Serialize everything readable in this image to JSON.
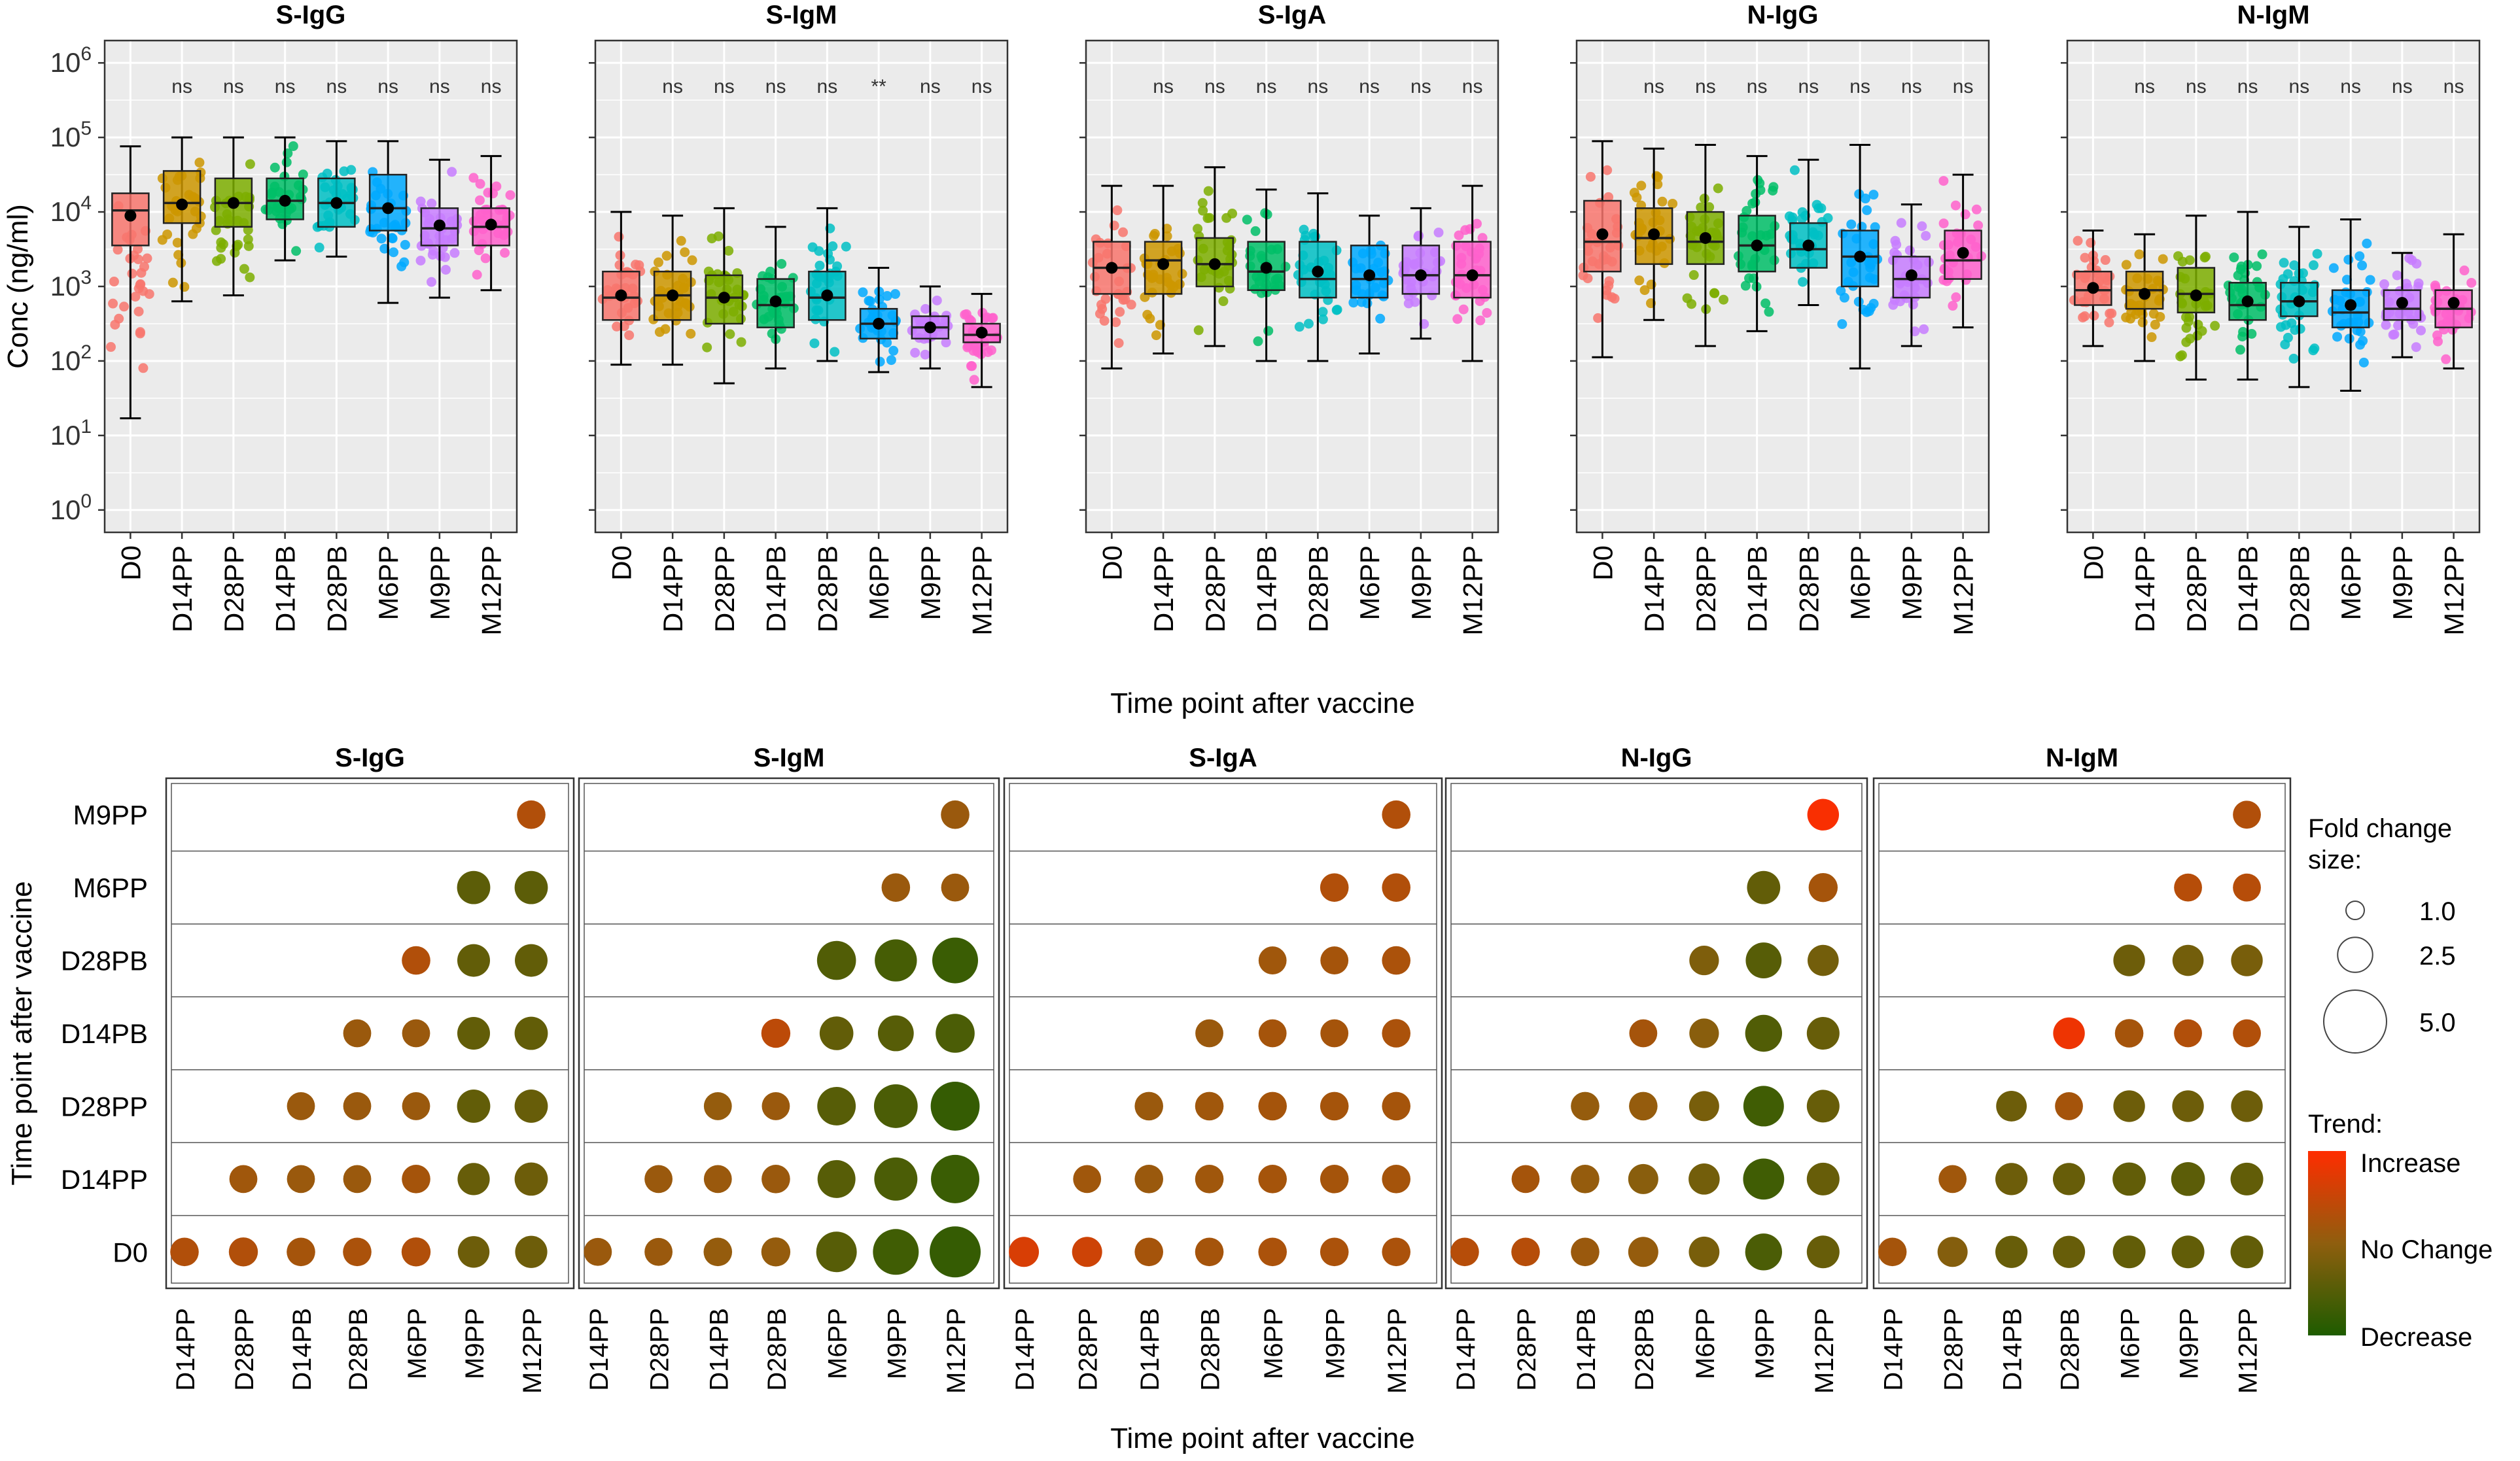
{
  "chart_data": [
    {
      "type": "boxplot",
      "panels": [
        "S-IgG",
        "S-IgM",
        "S-IgA",
        "N-IgG",
        "N-IgM"
      ],
      "categories": [
        "D0",
        "D14PP",
        "D28PP",
        "D14PB",
        "D28PB",
        "M6PP",
        "M9PP",
        "M12PP"
      ],
      "colors": [
        "#F8766D",
        "#CD9600",
        "#7CAE00",
        "#00BE67",
        "#00BFC4",
        "#00A9FF",
        "#C77CFF",
        "#FF61CC"
      ],
      "ylabel": "Conc (ng/ml)",
      "xlabel": "Time point after vaccine",
      "yscale": "log10",
      "ylim_log10": [
        -0.3,
        6.3
      ],
      "ytick_exponents": [
        "0",
        "1",
        "2",
        "3",
        "4",
        "5",
        "6"
      ],
      "ytick_base": "10",
      "ytick_values_log10": [
        0,
        1,
        2,
        3,
        4,
        5,
        6
      ],
      "box_log10": {
        "S-IgG": [
          [
            3.55,
            4.02,
            4.25,
            1.23,
            4.88,
            3.95
          ],
          [
            3.85,
            4.12,
            4.55,
            2.8,
            5.0,
            4.1
          ],
          [
            3.8,
            4.12,
            4.45,
            2.88,
            5.0,
            4.12
          ],
          [
            3.9,
            4.15,
            4.45,
            3.35,
            5.0,
            4.15
          ],
          [
            3.8,
            4.12,
            4.45,
            3.4,
            4.95,
            4.12
          ],
          [
            3.75,
            4.05,
            4.5,
            2.78,
            4.95,
            4.05
          ],
          [
            3.55,
            3.78,
            4.05,
            2.85,
            4.7,
            3.82
          ],
          [
            3.55,
            3.8,
            4.05,
            2.95,
            4.75,
            3.83
          ]
        ],
        "S-IgM": [
          [
            2.55,
            2.85,
            3.2,
            1.95,
            4.0,
            2.88
          ],
          [
            2.55,
            2.88,
            3.2,
            1.95,
            3.95,
            2.88
          ],
          [
            2.5,
            2.85,
            3.15,
            1.7,
            4.05,
            2.85
          ],
          [
            2.45,
            2.75,
            3.1,
            1.9,
            3.8,
            2.8
          ],
          [
            2.55,
            2.85,
            3.2,
            2.0,
            4.05,
            2.88
          ],
          [
            2.3,
            2.5,
            2.7,
            1.85,
            3.25,
            2.5
          ],
          [
            2.3,
            2.45,
            2.6,
            1.9,
            3.0,
            2.45
          ],
          [
            2.25,
            2.35,
            2.5,
            1.65,
            2.9,
            2.38
          ]
        ],
        "S-IgA": [
          [
            2.9,
            3.25,
            3.6,
            1.9,
            4.35,
            3.25
          ],
          [
            2.9,
            3.35,
            3.6,
            2.1,
            4.35,
            3.3
          ],
          [
            3.0,
            3.3,
            3.65,
            2.2,
            4.6,
            3.3
          ],
          [
            2.95,
            3.2,
            3.6,
            2.0,
            4.3,
            3.25
          ],
          [
            2.85,
            3.1,
            3.6,
            2.0,
            4.25,
            3.2
          ],
          [
            2.85,
            3.1,
            3.55,
            2.1,
            3.95,
            3.15
          ],
          [
            2.9,
            3.15,
            3.55,
            2.3,
            4.05,
            3.15
          ],
          [
            2.85,
            3.15,
            3.6,
            2.0,
            4.35,
            3.15
          ]
        ],
        "N-IgG": [
          [
            3.2,
            3.6,
            4.15,
            2.05,
            4.95,
            3.7
          ],
          [
            3.3,
            3.65,
            4.05,
            2.55,
            4.85,
            3.7
          ],
          [
            3.3,
            3.6,
            4.0,
            2.2,
            4.9,
            3.65
          ],
          [
            3.2,
            3.55,
            3.95,
            2.4,
            4.75,
            3.55
          ],
          [
            3.25,
            3.5,
            3.85,
            2.75,
            4.7,
            3.55
          ],
          [
            3.0,
            3.4,
            3.75,
            1.9,
            4.9,
            3.4
          ],
          [
            2.85,
            3.1,
            3.4,
            2.2,
            4.1,
            3.15
          ],
          [
            3.1,
            3.35,
            3.75,
            2.45,
            4.5,
            3.45
          ]
        ],
        "N-IgM": [
          [
            2.75,
            2.95,
            3.2,
            2.2,
            3.75,
            2.98
          ],
          [
            2.7,
            2.95,
            3.2,
            2.0,
            3.7,
            2.9
          ],
          [
            2.65,
            2.9,
            3.25,
            1.75,
            3.95,
            2.88
          ],
          [
            2.55,
            2.75,
            3.05,
            1.75,
            4.0,
            2.8
          ],
          [
            2.6,
            2.8,
            3.05,
            1.65,
            3.8,
            2.8
          ],
          [
            2.45,
            2.65,
            2.95,
            1.6,
            3.9,
            2.75
          ],
          [
            2.55,
            2.7,
            2.95,
            2.05,
            3.45,
            2.78
          ],
          [
            2.45,
            2.7,
            2.95,
            1.9,
            3.7,
            2.78
          ]
        ]
      },
      "annotations": {
        "S-IgG": [
          "ns",
          "ns",
          "ns",
          "ns",
          "ns",
          "ns",
          "ns"
        ],
        "S-IgM": [
          "ns",
          "ns",
          "ns",
          "ns",
          "**",
          "ns",
          "ns"
        ],
        "S-IgA": [
          "ns",
          "ns",
          "ns",
          "ns",
          "ns",
          "ns",
          "ns"
        ],
        "N-IgG": [
          "ns",
          "ns",
          "ns",
          "ns",
          "ns",
          "ns",
          "ns"
        ],
        "N-IgM": [
          "ns",
          "ns",
          "ns",
          "ns",
          "ns",
          "ns",
          "ns"
        ]
      }
    },
    {
      "type": "bubble",
      "panels": [
        "S-IgG",
        "S-IgM",
        "S-IgA",
        "N-IgG",
        "N-IgM"
      ],
      "x_categories": [
        "D14PP",
        "D28PP",
        "D14PB",
        "D28PB",
        "M6PP",
        "M9PP",
        "M12PP"
      ],
      "y_categories": [
        "D0",
        "D14PP",
        "D28PP",
        "D14PB",
        "D28PB",
        "M6PP",
        "M9PP"
      ],
      "xlabel": "Time point after vaccine",
      "ylabel": "Time point after vaccine",
      "fold_change": {
        "S-IgG": [
          [
            1.2,
            1.3,
            1.2,
            1.2,
            1.3,
            1.8,
            1.9
          ],
          [
            null,
            1.1,
            1.1,
            1.1,
            1.2,
            1.9,
            2.1
          ],
          [
            null,
            null,
            1.1,
            1.1,
            1.1,
            2.1,
            2.1
          ],
          [
            null,
            null,
            null,
            1.1,
            1.1,
            2.0,
            2.1
          ],
          [
            null,
            null,
            null,
            null,
            1.2,
            2.0,
            2.0
          ],
          [
            null,
            null,
            null,
            null,
            null,
            2.1,
            2.1
          ],
          [
            null,
            null,
            null,
            null,
            null,
            null,
            1.2
          ]
        ],
        "S-IgM": [
          [
            1.1,
            1.1,
            1.2,
            1.3,
            3.5,
            4.5,
            5.5
          ],
          [
            null,
            1.1,
            1.1,
            1.2,
            3.0,
            4.0,
            5.0
          ],
          [
            null,
            null,
            1.1,
            1.1,
            3.1,
            4.1,
            5.1
          ],
          [
            null,
            null,
            null,
            1.3,
            2.2,
            2.6,
            3.2
          ],
          [
            null,
            null,
            null,
            null,
            3.2,
            3.8,
            4.5
          ],
          [
            null,
            null,
            null,
            null,
            null,
            1.2,
            1.1
          ],
          [
            null,
            null,
            null,
            null,
            null,
            null,
            1.2
          ]
        ],
        "S-IgA": [
          [
            1.5,
            1.5,
            1.2,
            1.2,
            1.2,
            1.2,
            1.2
          ],
          [
            null,
            1.1,
            1.2,
            1.2,
            1.2,
            1.2,
            1.2
          ],
          [
            null,
            null,
            1.2,
            1.2,
            1.2,
            1.2,
            1.2
          ],
          [
            null,
            null,
            null,
            1.1,
            1.1,
            1.1,
            1.2
          ],
          [
            null,
            null,
            null,
            null,
            1.1,
            1.1,
            1.2
          ],
          [
            null,
            null,
            null,
            null,
            null,
            1.2,
            1.2
          ],
          [
            null,
            null,
            null,
            null,
            null,
            null,
            1.2
          ]
        ],
        "N-IgG": [
          [
            1.2,
            1.2,
            1.2,
            1.5,
            1.6,
            2.8,
            2.0
          ],
          [
            null,
            1.1,
            1.2,
            1.5,
            1.7,
            3.6,
            2.0
          ],
          [
            null,
            null,
            1.2,
            1.2,
            1.5,
            3.5,
            2.0
          ],
          [
            null,
            null,
            null,
            1.1,
            1.4,
            2.8,
            2.0
          ],
          [
            null,
            null,
            null,
            null,
            1.4,
            2.6,
            1.7
          ],
          [
            null,
            null,
            null,
            null,
            null,
            2.1,
            1.3
          ],
          [
            null,
            null,
            null,
            null,
            null,
            null,
            1.8
          ]
        ],
        "N-IgM": [
          [
            1.2,
            1.5,
            1.9,
            1.9,
            2.0,
            2.0,
            2.0
          ],
          [
            null,
            1.1,
            1.9,
            1.9,
            2.1,
            2.2,
            2.0
          ],
          [
            null,
            null,
            1.6,
            1.1,
            1.8,
            1.8,
            1.8
          ],
          [
            null,
            null,
            null,
            1.8,
            1.2,
            1.1,
            1.1
          ],
          [
            null,
            null,
            null,
            null,
            1.8,
            1.7,
            1.8
          ],
          [
            null,
            null,
            null,
            null,
            null,
            1.1,
            1.1
          ],
          [
            null,
            null,
            null,
            null,
            null,
            null,
            1.1
          ]
        ]
      },
      "trend": {
        "S-IgG": [
          [
            0.3,
            0.3,
            0.2,
            0.25,
            0.3,
            -0.3,
            -0.3
          ],
          [
            null,
            0.15,
            0.1,
            0.1,
            0.2,
            -0.35,
            -0.3
          ],
          [
            null,
            null,
            0.1,
            0.1,
            0.1,
            -0.4,
            -0.35
          ],
          [
            null,
            null,
            null,
            0.1,
            0.1,
            -0.4,
            -0.4
          ],
          [
            null,
            null,
            null,
            null,
            0.3,
            -0.4,
            -0.4
          ],
          [
            null,
            null,
            null,
            null,
            null,
            -0.45,
            -0.45
          ],
          [
            null,
            null,
            null,
            null,
            null,
            null,
            0.3
          ]
        ],
        "S-IgM": [
          [
            0.1,
            0.1,
            0.05,
            0.05,
            -0.5,
            -0.7,
            -0.8
          ],
          [
            null,
            0.1,
            0.1,
            0.1,
            -0.5,
            -0.6,
            -0.75
          ],
          [
            null,
            null,
            0.05,
            0.1,
            -0.5,
            -0.6,
            -0.8
          ],
          [
            null,
            null,
            null,
            0.4,
            -0.4,
            -0.5,
            -0.6
          ],
          [
            null,
            null,
            null,
            null,
            -0.55,
            -0.65,
            -0.75
          ],
          [
            null,
            null,
            null,
            null,
            null,
            0.1,
            0.1
          ],
          [
            null,
            null,
            null,
            null,
            null,
            null,
            0.1
          ]
        ],
        "S-IgA": [
          [
            0.65,
            0.55,
            0.2,
            0.2,
            0.25,
            0.25,
            0.25
          ],
          [
            null,
            0.15,
            0.1,
            0.15,
            0.2,
            0.2,
            0.2
          ],
          [
            null,
            null,
            0.1,
            0.15,
            0.2,
            0.2,
            0.2
          ],
          [
            null,
            null,
            null,
            0.1,
            0.2,
            0.2,
            0.25
          ],
          [
            null,
            null,
            null,
            null,
            0.15,
            0.2,
            0.25
          ],
          [
            null,
            null,
            null,
            null,
            null,
            0.3,
            0.3
          ],
          [
            null,
            null,
            null,
            null,
            null,
            null,
            0.3
          ]
        ],
        "N-IgG": [
          [
            0.35,
            0.35,
            0.1,
            0.05,
            -0.2,
            -0.6,
            -0.35
          ],
          [
            null,
            0.2,
            0.05,
            -0.05,
            -0.25,
            -0.7,
            -0.35
          ],
          [
            null,
            null,
            0.05,
            0.05,
            -0.2,
            -0.7,
            -0.35
          ],
          [
            null,
            null,
            null,
            0.2,
            -0.05,
            -0.55,
            -0.35
          ],
          [
            null,
            null,
            null,
            null,
            -0.15,
            -0.5,
            -0.25
          ],
          [
            null,
            null,
            null,
            null,
            null,
            -0.4,
            0.2
          ],
          [
            null,
            null,
            null,
            null,
            null,
            null,
            0.95
          ]
        ],
        "N-IgM": [
          [
            0.2,
            -0.1,
            -0.35,
            -0.35,
            -0.4,
            -0.4,
            -0.4
          ],
          [
            null,
            0.15,
            -0.3,
            -0.35,
            -0.4,
            -0.45,
            -0.4
          ],
          [
            null,
            null,
            -0.3,
            0.2,
            -0.3,
            -0.3,
            -0.3
          ],
          [
            null,
            null,
            null,
            0.85,
            0.2,
            0.3,
            0.3
          ],
          [
            null,
            null,
            null,
            null,
            -0.3,
            -0.25,
            -0.2
          ],
          [
            null,
            null,
            null,
            null,
            null,
            0.35,
            0.35
          ],
          [
            null,
            null,
            null,
            null,
            null,
            null,
            0.3
          ]
        ]
      },
      "legend": {
        "size_title": "Fold change\nsize:",
        "size_values": [
          "1.0",
          "2.5",
          "5.0"
        ],
        "trend_title": "Trend:",
        "trend_labels": [
          "Increase",
          "No Change",
          "Decrease"
        ],
        "trend_colors": [
          "#FF2D00",
          "#8F5E0E",
          "#1E5C00"
        ],
        "placement": "right"
      }
    }
  ]
}
